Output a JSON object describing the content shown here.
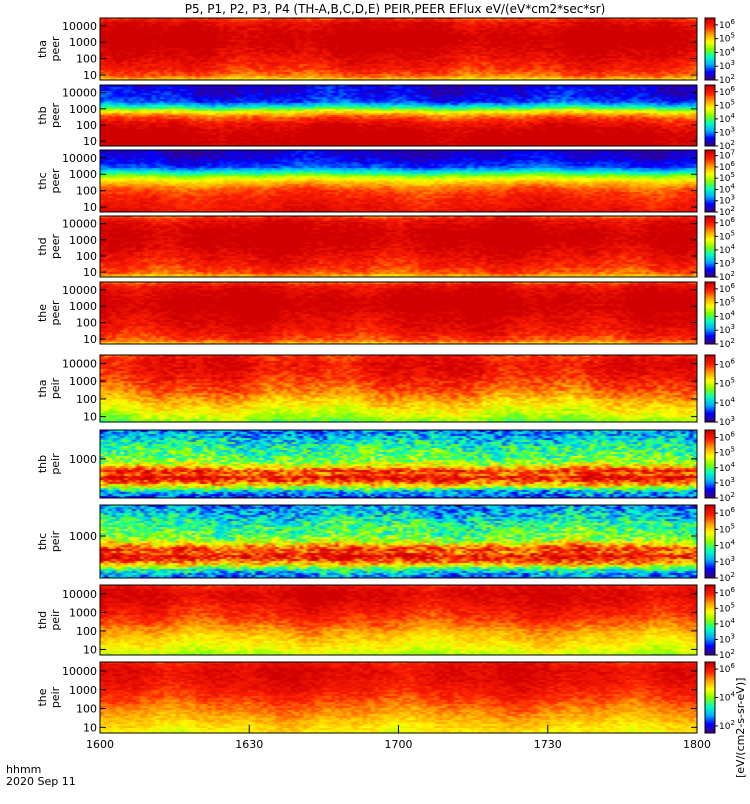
{
  "chart_data": {
    "type": "heatmap",
    "title": "P5, P1, P2, P3, P4 (TH-A,B,C,D,E) PEIR,PEER EFlux eV/(eV*cm2*sec*sr)",
    "colorbar_label": "[eV/(cm2-s-sr-eV)]",
    "x_axis": {
      "date_label": "2020 Sep 11",
      "unit_label": "hhmm",
      "ticks": [
        "1600",
        "1630",
        "1700",
        "1730",
        "1800"
      ],
      "range": [
        "1600",
        "1800"
      ]
    },
    "colormap": [
      "#3b007f",
      "#0000ff",
      "#00b0ff",
      "#00ffc0",
      "#80ff00",
      "#ffff00",
      "#ffa000",
      "#ff2000",
      "#d00000"
    ],
    "panels": [
      {
        "name_line1": "tha",
        "name_line2": "peer",
        "y_scale": "log",
        "y_range": [
          5,
          30000
        ],
        "y_ticks": [
          "10",
          "100",
          "1000",
          "10000"
        ],
        "cb_ticks": [
          "10^2",
          "10^3",
          "10^4",
          "10^5",
          "10^6"
        ],
        "cb_range": [
          2,
          6.5
        ],
        "profile": [
          [
            5,
            4.7
          ],
          [
            10,
            5.6
          ],
          [
            30,
            6.0
          ],
          [
            100,
            6.2
          ],
          [
            300,
            6.4
          ],
          [
            1000,
            6.6
          ],
          [
            3000,
            6.6
          ],
          [
            10000,
            6.4
          ],
          [
            20000,
            6.2
          ],
          [
            30000,
            5.8
          ]
        ]
      },
      {
        "name_line1": "thb",
        "name_line2": "peer",
        "y_scale": "log",
        "y_range": [
          5,
          30000
        ],
        "y_ticks": [
          "10",
          "100",
          "1000",
          "10000"
        ],
        "cb_ticks": [
          "10^2",
          "10^3",
          "10^4",
          "10^5",
          "10^6"
        ],
        "cb_range": [
          2,
          6.5
        ],
        "profile": [
          [
            5,
            6.6
          ],
          [
            20,
            6.7
          ],
          [
            60,
            6.5
          ],
          [
            150,
            6.2
          ],
          [
            400,
            5.6
          ],
          [
            800,
            4.8
          ],
          [
            1500,
            3.6
          ],
          [
            3000,
            2.8
          ],
          [
            8000,
            2.5
          ],
          [
            30000,
            2.4
          ]
        ]
      },
      {
        "name_line1": "thc",
        "name_line2": "peer",
        "y_scale": "log",
        "y_range": [
          5,
          30000
        ],
        "y_ticks": [
          "10",
          "100",
          "1000",
          "10000"
        ],
        "cb_ticks": [
          "10^2",
          "10^3",
          "10^4",
          "10^5",
          "10^6",
          "10^7"
        ],
        "cb_range": [
          2,
          7.5
        ],
        "profile": [
          [
            5,
            7.2
          ],
          [
            20,
            7.0
          ],
          [
            60,
            6.8
          ],
          [
            150,
            6.5
          ],
          [
            400,
            5.8
          ],
          [
            800,
            5.0
          ],
          [
            1500,
            4.0
          ],
          [
            3000,
            3.0
          ],
          [
            8000,
            2.6
          ],
          [
            30000,
            2.4
          ]
        ]
      },
      {
        "name_line1": "thd",
        "name_line2": "peer",
        "y_scale": "log",
        "y_range": [
          5,
          30000
        ],
        "y_ticks": [
          "10",
          "100",
          "1000",
          "10000"
        ],
        "cb_ticks": [
          "10^2",
          "10^3",
          "10^4",
          "10^5",
          "10^6"
        ],
        "cb_range": [
          2,
          6.5
        ],
        "profile": [
          [
            5,
            4.8
          ],
          [
            10,
            5.7
          ],
          [
            30,
            6.0
          ],
          [
            100,
            6.2
          ],
          [
            300,
            6.4
          ],
          [
            1000,
            6.6
          ],
          [
            3000,
            6.6
          ],
          [
            10000,
            6.4
          ],
          [
            20000,
            6.2
          ],
          [
            30000,
            5.8
          ]
        ]
      },
      {
        "name_line1": "the",
        "name_line2": "peer",
        "y_scale": "log",
        "y_range": [
          5,
          30000
        ],
        "y_ticks": [
          "10",
          "100",
          "1000",
          "10000"
        ],
        "cb_ticks": [
          "10^2",
          "10^3",
          "10^4",
          "10^5",
          "10^6"
        ],
        "cb_range": [
          2,
          6.5
        ],
        "profile": [
          [
            5,
            4.9
          ],
          [
            10,
            5.8
          ],
          [
            30,
            6.1
          ],
          [
            100,
            6.3
          ],
          [
            300,
            6.4
          ],
          [
            1000,
            6.6
          ],
          [
            3000,
            6.6
          ],
          [
            10000,
            6.4
          ],
          [
            20000,
            6.2
          ],
          [
            30000,
            5.8
          ]
        ]
      },
      {
        "name_line1": "tha",
        "name_line2": "peir",
        "y_scale": "log",
        "y_range": [
          5,
          30000
        ],
        "y_ticks": [
          "10",
          "100",
          "1000",
          "10000"
        ],
        "cb_ticks": [
          "10^3",
          "10^4",
          "10^5",
          "10^6"
        ],
        "cb_range": [
          3,
          6.5
        ],
        "profile": [
          [
            5,
            4.6
          ],
          [
            10,
            4.9
          ],
          [
            30,
            5.2
          ],
          [
            100,
            5.5
          ],
          [
            300,
            5.8
          ],
          [
            1000,
            6.0
          ],
          [
            3000,
            6.2
          ],
          [
            10000,
            6.3
          ],
          [
            20000,
            6.2
          ],
          [
            30000,
            6.1
          ]
        ]
      },
      {
        "name_line1": "thb",
        "name_line2": "peir",
        "y_scale": "log",
        "y_range": [
          10,
          30000
        ],
        "y_ticks": [
          "1000"
        ],
        "cb_ticks": [
          "10^2",
          "10^3",
          "10^4",
          "10^5",
          "10^6"
        ],
        "cb_range": [
          2,
          6.5
        ],
        "profile": [
          [
            10,
            2.6
          ],
          [
            25,
            3.3
          ],
          [
            40,
            4.5
          ],
          [
            60,
            5.4
          ],
          [
            90,
            6.0
          ],
          [
            130,
            6.3
          ],
          [
            190,
            5.6
          ],
          [
            260,
            6.0
          ],
          [
            400,
            5.2
          ],
          [
            700,
            4.4
          ],
          [
            1500,
            4.0
          ],
          [
            4000,
            3.8
          ],
          [
            10000,
            3.4
          ],
          [
            30000,
            3.0
          ]
        ]
      },
      {
        "name_line1": "thc",
        "name_line2": "peir",
        "y_scale": "log",
        "y_range": [
          10,
          30000
        ],
        "y_ticks": [
          "1000"
        ],
        "cb_ticks": [
          "10^2",
          "10^3",
          "10^4",
          "10^5",
          "10^6"
        ],
        "cb_range": [
          2,
          6.5
        ],
        "profile": [
          [
            10,
            2.8
          ],
          [
            25,
            3.5
          ],
          [
            40,
            4.6
          ],
          [
            60,
            5.4
          ],
          [
            90,
            6.0
          ],
          [
            130,
            6.3
          ],
          [
            190,
            5.6
          ],
          [
            260,
            6.0
          ],
          [
            400,
            5.2
          ],
          [
            700,
            4.4
          ],
          [
            1500,
            4.0
          ],
          [
            4000,
            3.8
          ],
          [
            10000,
            3.4
          ],
          [
            30000,
            3.0
          ]
        ]
      },
      {
        "name_line1": "thd",
        "name_line2": "peir",
        "y_scale": "log",
        "y_range": [
          5,
          30000
        ],
        "y_ticks": [
          "10",
          "100",
          "1000",
          "10000"
        ],
        "cb_ticks": [
          "10^2",
          "10^3",
          "10^4",
          "10^5",
          "10^6"
        ],
        "cb_range": [
          2,
          6.5
        ],
        "profile": [
          [
            5,
            4.4
          ],
          [
            10,
            4.7
          ],
          [
            30,
            5.0
          ],
          [
            100,
            5.3
          ],
          [
            300,
            5.7
          ],
          [
            1000,
            6.0
          ],
          [
            3000,
            6.2
          ],
          [
            10000,
            6.4
          ],
          [
            20000,
            6.3
          ],
          [
            30000,
            6.1
          ]
        ]
      },
      {
        "name_line1": "the",
        "name_line2": "peir",
        "y_scale": "log",
        "y_range": [
          5,
          30000
        ],
        "y_ticks": [
          "10",
          "100",
          "1000",
          "10000"
        ],
        "cb_ticks": [
          "10^2",
          "10^4",
          "10^6"
        ],
        "cb_range": [
          1.5,
          6.5
        ],
        "profile": [
          [
            5,
            4.6
          ],
          [
            10,
            4.8
          ],
          [
            30,
            5.1
          ],
          [
            100,
            5.4
          ],
          [
            300,
            5.7
          ],
          [
            1000,
            6.0
          ],
          [
            3000,
            6.2
          ],
          [
            10000,
            6.3
          ],
          [
            20000,
            6.2
          ],
          [
            30000,
            6.0
          ]
        ]
      }
    ]
  }
}
